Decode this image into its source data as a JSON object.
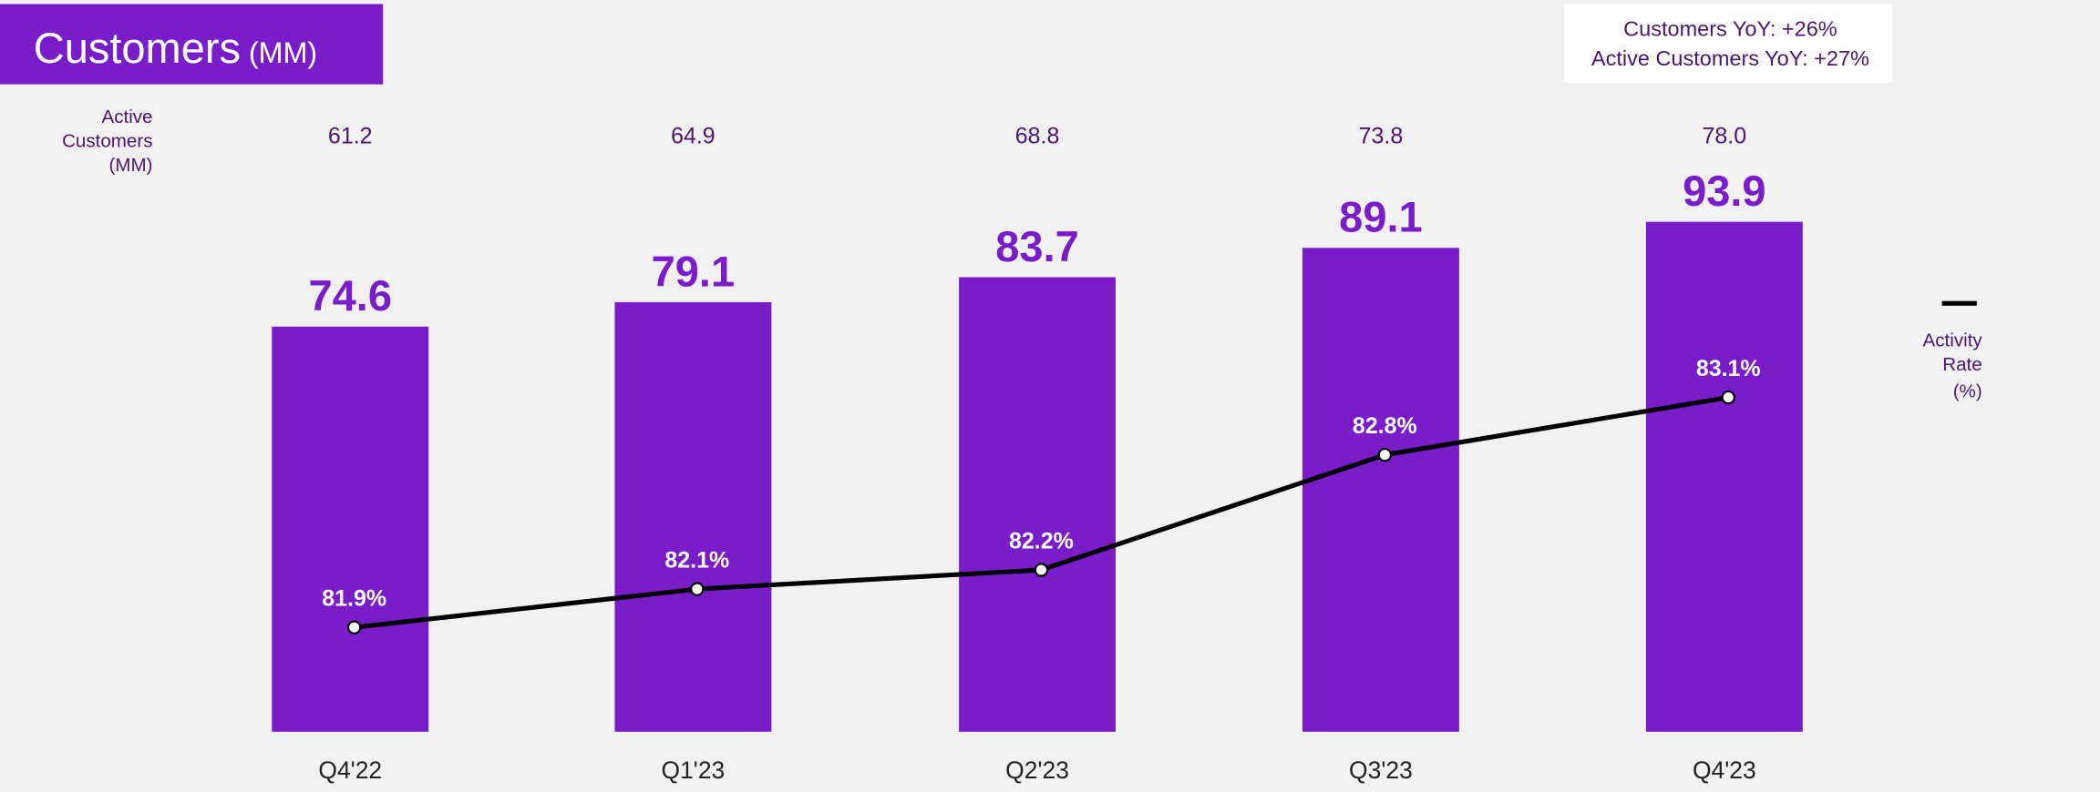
{
  "title": {
    "main": "Customers",
    "unit": "(MM)"
  },
  "callout": {
    "line1": "Customers YoY: +26%",
    "line2": "Active Customers YoY: +27%"
  },
  "row_label": [
    "Active",
    "Customers",
    "(MM)"
  ],
  "legend": {
    "lines": [
      "Activity",
      "Rate",
      "(%)"
    ]
  },
  "colors": {
    "bar": "#781dc8",
    "text": "#4a1672",
    "line": "#000000",
    "background": "#f1f1f1"
  },
  "chart_data": {
    "type": "bar+line",
    "categories": [
      "Q4'22",
      "Q1'23",
      "Q2'23",
      "Q3'23",
      "Q4'23"
    ],
    "series": [
      {
        "name": "Customers (MM)",
        "type": "bar",
        "values": [
          74.6,
          79.1,
          83.7,
          89.1,
          93.9
        ],
        "labels": [
          "74.6",
          "79.1",
          "83.7",
          "89.1",
          "93.9"
        ]
      },
      {
        "name": "Activity Rate (%)",
        "type": "line",
        "values": [
          81.9,
          82.1,
          82.2,
          82.8,
          83.1
        ],
        "labels": [
          "81.9%",
          "82.1%",
          "82.2%",
          "82.8%",
          "83.1%"
        ]
      }
    ],
    "active_customers": {
      "name": "Active Customers (MM)",
      "values": [
        "61.2",
        "64.9",
        "68.8",
        "73.8",
        "78.0"
      ]
    },
    "grid": false
  }
}
